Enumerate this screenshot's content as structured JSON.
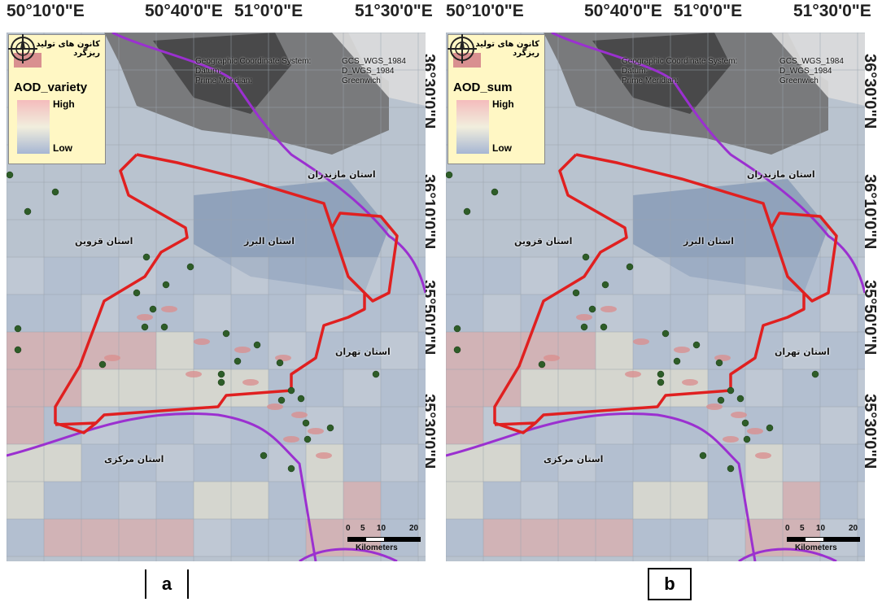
{
  "top_labels": [
    "50°10'0\"E",
    "50°40'0\"E",
    "51°0'0\"E",
    "51°30'0\"E"
  ],
  "lat_labels": [
    "36°30'0\"N",
    "36°10'0\"N",
    "35°50'0\"N",
    "35°30'0\"N"
  ],
  "gcs": {
    "left": [
      "Geographic Coordinate System:",
      "Datum:",
      "Prime Meridian:"
    ],
    "right": [
      "GCS_WGS_1984",
      "D_WGS_1984",
      "Greenwich"
    ]
  },
  "panels": [
    {
      "tag": "a",
      "legend_field": "AOD_variety"
    },
    {
      "tag": "b",
      "legend_field": "AOD_sum"
    }
  ],
  "legend": {
    "source_label": "کانون های تولید ریزگرد",
    "high": "High",
    "low": "Low",
    "source_color": "#d99090"
  },
  "province_labels": {
    "mazandaran": "استان مازندران",
    "qazvin": "استان قزوین",
    "alborz": "استان البرز",
    "tehran": "استان تهران",
    "markazi": "استان مرکزی"
  },
  "scale": {
    "ticks": [
      "0",
      "5",
      "10",
      "20"
    ],
    "unit": "Kilometers"
  },
  "colors": {
    "study_area_boundary": "#e02020",
    "province_boundary": "#9b30d0",
    "station": "#2e5d28"
  }
}
